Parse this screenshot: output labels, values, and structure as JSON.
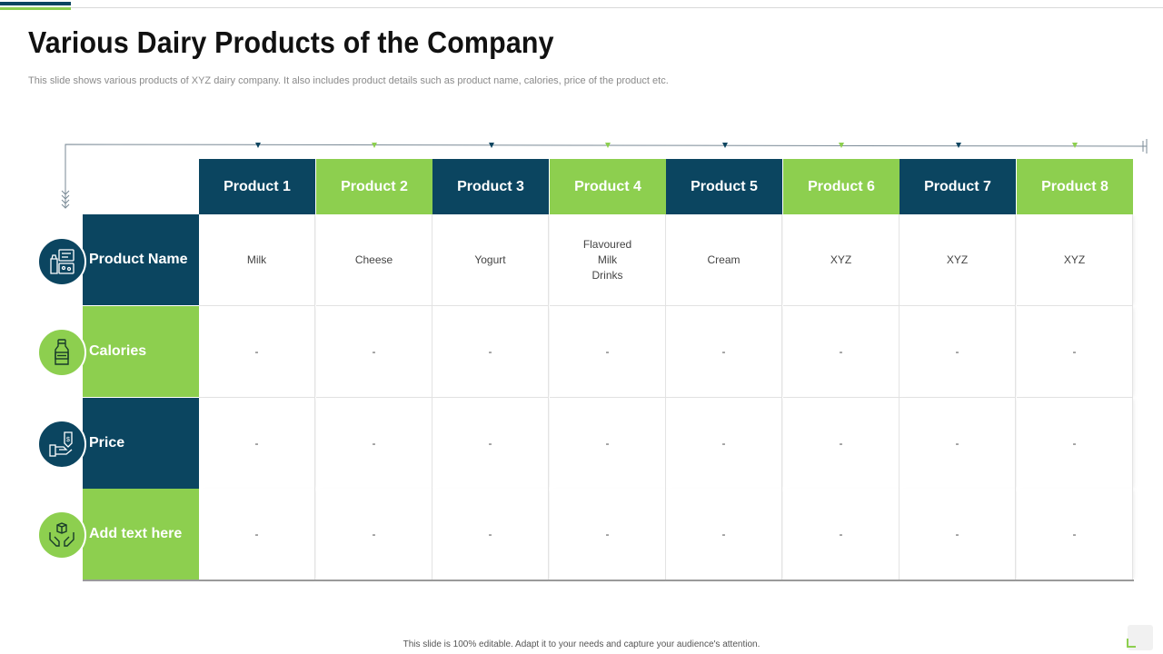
{
  "slide": {
    "title": "Various Dairy Products of the Company",
    "subtitle": "This slide shows various products of XYZ  dairy company. It also includes product details such as product name, calories, price of the product etc.",
    "footer": "This slide is 100% editable.  Adapt it to your needs and capture your audience's attention."
  },
  "colors": {
    "navy": "#0b4560",
    "green": "#8dcf4f"
  },
  "table": {
    "products": [
      "Product 1",
      "Product 2",
      "Product 3",
      "Product 4",
      "Product 5",
      "Product 6",
      "Product 7",
      "Product 8"
    ],
    "rows": [
      {
        "label": "Product Name",
        "icon": "dairy-products-icon",
        "values": [
          "Milk",
          "Cheese",
          "Yogurt",
          "Flavoured\nMilk\nDrinks",
          "Cream",
          "XYZ",
          "XYZ",
          "XYZ"
        ]
      },
      {
        "label": "Calories",
        "icon": "milk-bottle-icon",
        "values": [
          "-",
          "-",
          "-",
          "-",
          "-",
          "-",
          "-",
          "-"
        ]
      },
      {
        "label": "Price",
        "icon": "price-tag-icon",
        "values": [
          "-",
          "-",
          "-",
          "-",
          "-",
          "-",
          "-",
          "-"
        ]
      },
      {
        "label": "Add text here",
        "icon": "hands-box-icon",
        "values": [
          "-",
          "-",
          "-",
          "-",
          "-",
          "-",
          "-",
          "-"
        ]
      }
    ]
  }
}
